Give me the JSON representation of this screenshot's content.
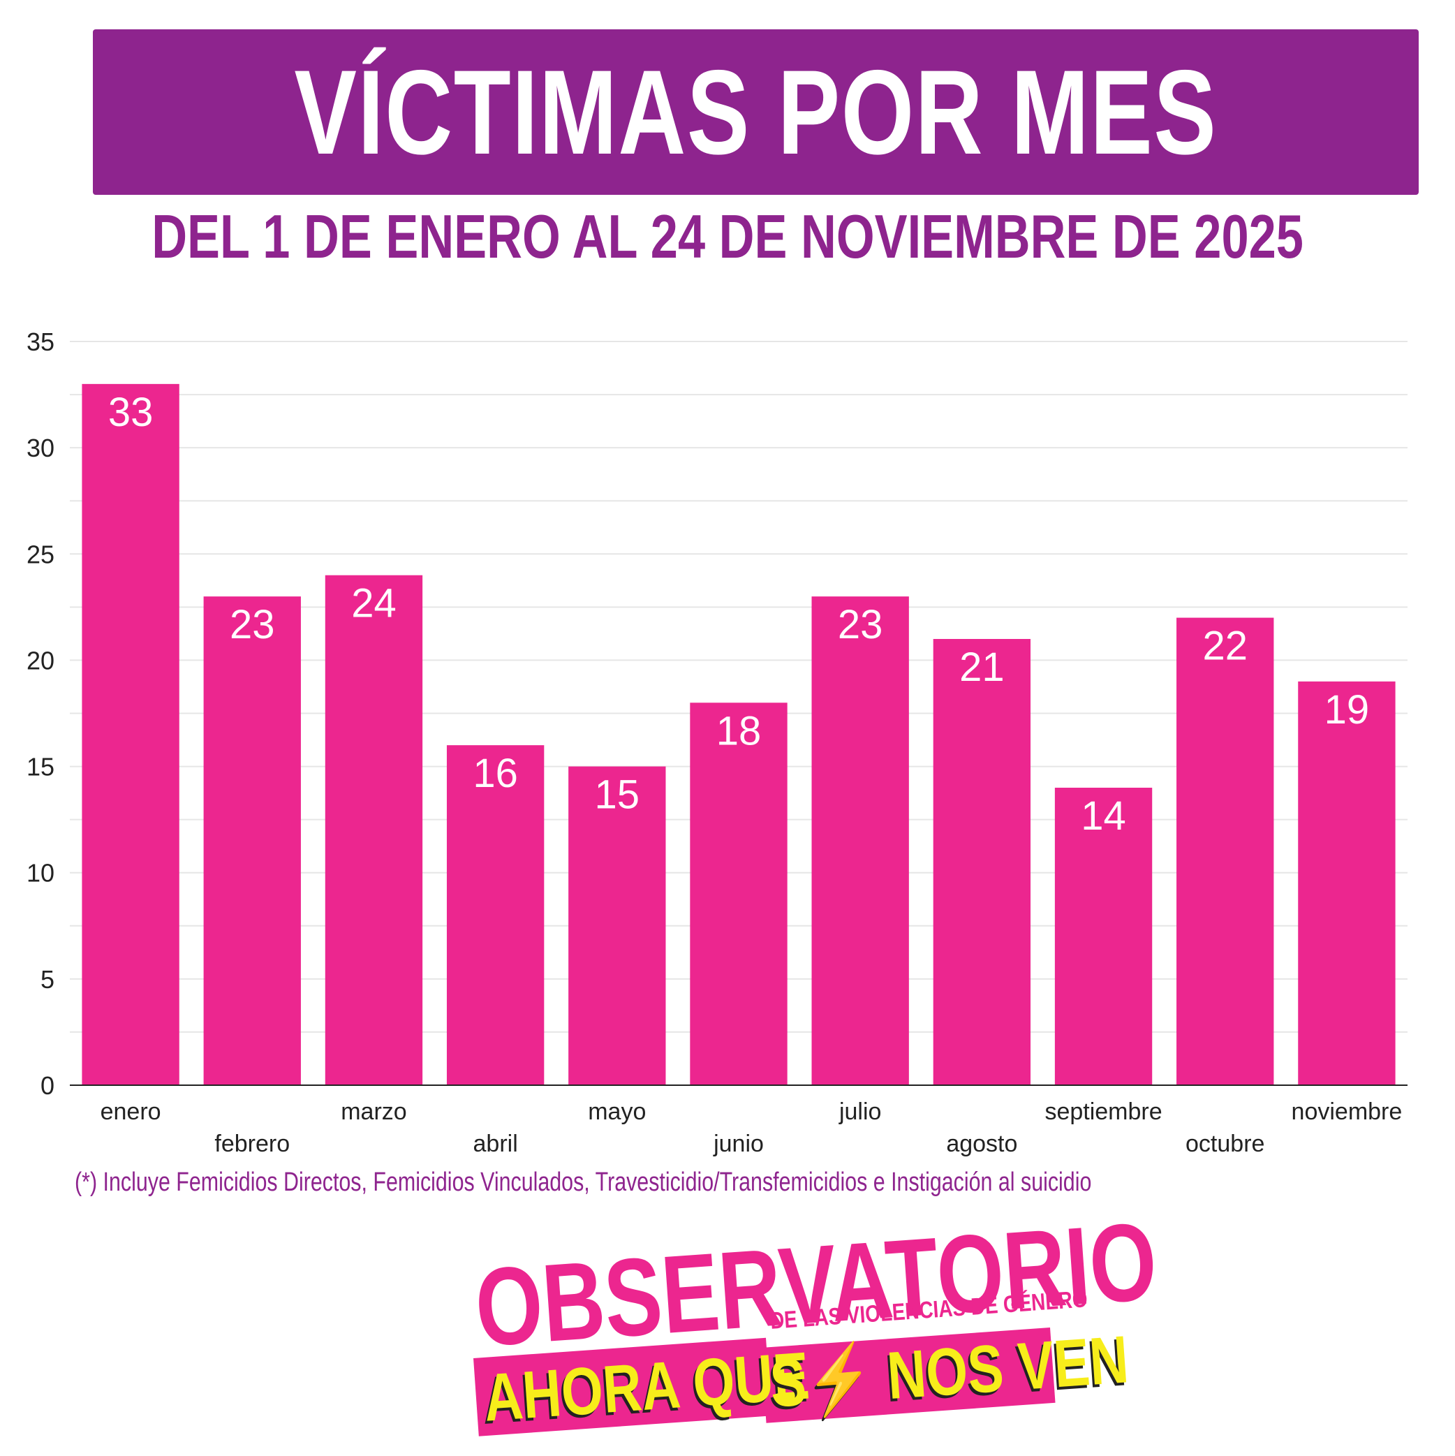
{
  "header": {
    "title": "VÍCTIMAS POR MES",
    "subtitle": "DEL 1 DE ENERO AL 24 DE NOVIEMBRE DE 2025"
  },
  "colors": {
    "bar": "#ec268f",
    "title_bg": "#8e248e",
    "accent_yellow": "#f7ed1b",
    "grid": "#e6e6e6"
  },
  "chart_data": {
    "type": "bar",
    "title": "",
    "xlabel": "",
    "ylabel": "",
    "categories": [
      "enero",
      "febrero",
      "marzo",
      "abril",
      "mayo",
      "junio",
      "julio",
      "agosto",
      "septiembre",
      "octubre",
      "noviembre"
    ],
    "values": [
      33,
      23,
      24,
      16,
      15,
      18,
      23,
      21,
      14,
      22,
      19
    ],
    "ylim": [
      0,
      35
    ],
    "yticks": [
      0,
      5,
      10,
      15,
      20,
      25,
      30,
      35
    ],
    "grid": true,
    "data_labels": true
  },
  "footnote": "(*) Incluye Femicidios Directos, Femicidios Vinculados,  Travesticidio/Transfemicidios e Instigación al suicidio",
  "logo": {
    "line1": "OBSERVATORIO",
    "line2": "DE LAS VIOLENCIAS DE GÉNERO",
    "line3_left": "AHORA QUE",
    "line3_right": "S⚡ NOS VEN"
  }
}
